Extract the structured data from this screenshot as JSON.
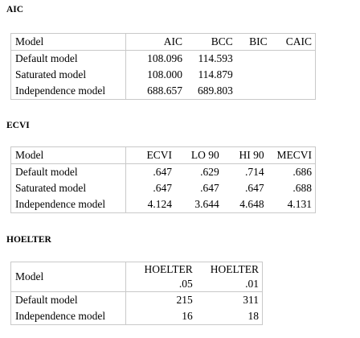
{
  "aic": {
    "heading": "AIC",
    "columns": [
      "Model",
      "AIC",
      "BCC",
      "BIC",
      "CAIC"
    ],
    "rows": [
      [
        "Default model",
        "108.096",
        "114.593",
        "",
        ""
      ],
      [
        "Saturated model",
        "108.000",
        "114.879",
        "",
        ""
      ],
      [
        "Independence model",
        "688.657",
        "689.803",
        "",
        ""
      ]
    ]
  },
  "ecvi": {
    "heading": "ECVI",
    "columns": [
      "Model",
      "ECVI",
      "LO 90",
      "HI 90",
      "MECVI"
    ],
    "rows": [
      [
        "Default model",
        ".647",
        ".629",
        ".714",
        ".686"
      ],
      [
        "Saturated model",
        ".647",
        ".647",
        ".647",
        ".688"
      ],
      [
        "Independence model",
        "4.124",
        "3.644",
        "4.648",
        "4.131"
      ]
    ]
  },
  "hoelter": {
    "heading": "HOELTER",
    "columns": [
      {
        "line1": "Model",
        "line2": ""
      },
      {
        "line1": "HOELTER",
        "line2": ".05"
      },
      {
        "line1": "HOELTER",
        "line2": ".01"
      }
    ],
    "rows": [
      [
        "Default model",
        "215",
        "311"
      ],
      [
        "Independence model",
        "16",
        "18"
      ]
    ]
  }
}
